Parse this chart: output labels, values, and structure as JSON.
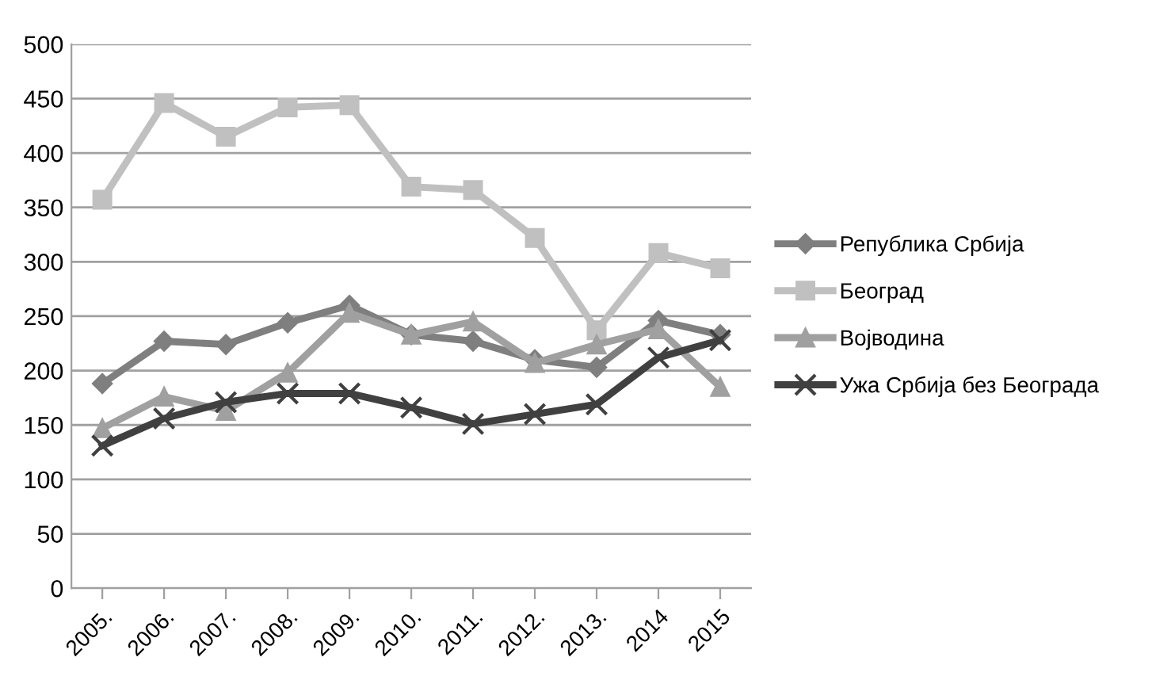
{
  "chart_data": {
    "type": "line",
    "categories": [
      "2005.",
      "2006.",
      "2007.",
      "2008.",
      "2009.",
      "2010.",
      "2011.",
      "2012.",
      "2013.",
      "2014",
      "2015"
    ],
    "series": [
      {
        "name": "Република Србија",
        "color": "#7f7f7f",
        "marker": "diamond",
        "values": [
          188,
          227,
          224,
          244,
          260,
          233,
          227,
          210,
          203,
          246,
          233
        ]
      },
      {
        "name": "Београд",
        "color": "#c0c0c0",
        "marker": "square",
        "values": [
          357,
          446,
          415,
          442,
          444,
          369,
          366,
          322,
          237,
          308,
          294
        ]
      },
      {
        "name": "Војводина",
        "color": "#a0a0a0",
        "marker": "triangle",
        "values": [
          147,
          176,
          163,
          198,
          253,
          233,
          245,
          207,
          224,
          238,
          185
        ]
      },
      {
        "name": "Ужа Србија без Београда",
        "color": "#404040",
        "marker": "cross",
        "values": [
          131,
          156,
          171,
          179,
          179,
          166,
          151,
          160,
          169,
          212,
          228
        ]
      }
    ],
    "ylim": [
      0,
      500
    ],
    "yticks": [
      0,
      50,
      100,
      150,
      200,
      250,
      300,
      350,
      400,
      450,
      500
    ],
    "grid": "y",
    "legend": "right",
    "line_style": "solid"
  }
}
